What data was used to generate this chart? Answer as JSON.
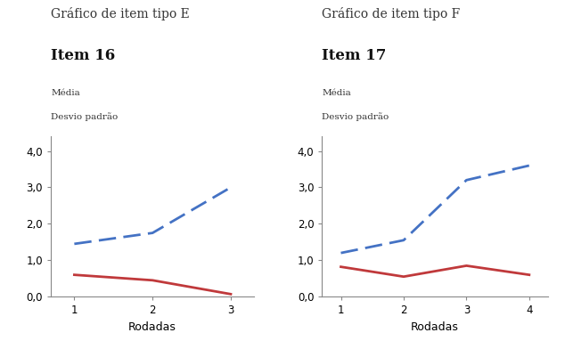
{
  "chart_E": {
    "title": "Gráfico de item tipo E",
    "subtitle": "Item 16",
    "legend_line1": "Média",
    "legend_line2": "Desvio padrão",
    "xlabel": "Rodadas",
    "x": [
      1,
      2,
      3
    ],
    "mean": [
      1.45,
      1.75,
      3.0
    ],
    "std": [
      0.6,
      0.45,
      0.07
    ],
    "ylim": [
      0,
      4.4
    ],
    "yticks": [
      0.0,
      1.0,
      2.0,
      3.0,
      4.0
    ],
    "ytick_labels": [
      "0,0",
      "1,0",
      "2,0",
      "3,0",
      "4,0"
    ],
    "xticks": [
      1,
      2,
      3
    ]
  },
  "chart_F": {
    "title": "Gráfico de item tipo F",
    "subtitle": "Item 17",
    "legend_line1": "Média",
    "legend_line2": "Desvio padrão",
    "xlabel": "Rodadas",
    "x": [
      1,
      2,
      3,
      4
    ],
    "mean": [
      1.2,
      1.55,
      3.2,
      3.6
    ],
    "std": [
      0.82,
      0.55,
      0.85,
      0.6
    ],
    "ylim": [
      0,
      4.4
    ],
    "yticks": [
      0.0,
      1.0,
      2.0,
      3.0,
      4.0
    ],
    "ytick_labels": [
      "0,0",
      "1,0",
      "2,0",
      "3,0",
      "4,0"
    ],
    "xticks": [
      1,
      2,
      3,
      4
    ]
  },
  "mean_color": "#4472C4",
  "std_color": "#C0393B",
  "bg_color": "#FFFFFF",
  "title_fontsize": 10,
  "subtitle_fontsize": 12,
  "legend_fontsize": 7.5,
  "axis_fontsize": 9,
  "tick_fontsize": 8.5
}
